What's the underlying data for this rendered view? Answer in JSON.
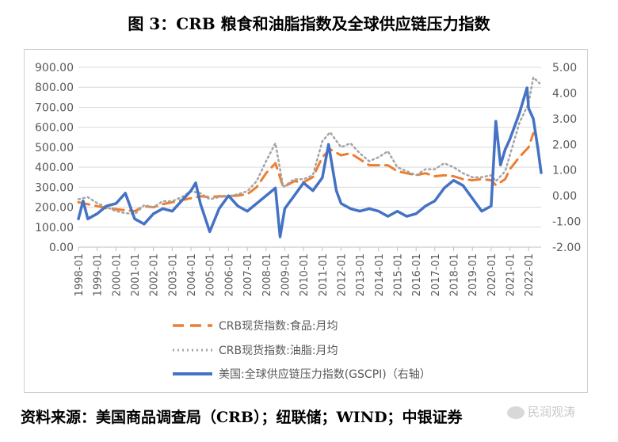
{
  "title": "图 3：CRB 粮食和油脂指数及全球供应链压力指数",
  "source": "资料来源：美国商品调查局（CRB）；纽联储；WIND；中银证券",
  "watermark": "民润观涛",
  "chart_data": {
    "type": "line",
    "x_ticks": [
      "1998-01",
      "1999-01",
      "2000-01",
      "2001-01",
      "2002-01",
      "2003-01",
      "2004-01",
      "2005-01",
      "2006-01",
      "2007-01",
      "2008-01",
      "2009-01",
      "2010-01",
      "2011-01",
      "2012-01",
      "2013-01",
      "2014-01",
      "2015-01",
      "2016-01",
      "2017-01",
      "2018-01",
      "2019-01",
      "2020-01",
      "2021-01",
      "2022-01"
    ],
    "y_left": {
      "min": 0,
      "max": 900,
      "ticks": [
        "0.00",
        "100.00",
        "200.00",
        "300.00",
        "400.00",
        "500.00",
        "600.00",
        "700.00",
        "800.00",
        "900.00"
      ]
    },
    "y_right": {
      "min": -2,
      "max": 5,
      "ticks": [
        "-2.00",
        "-1.00",
        "0.00",
        "1.00",
        "2.00",
        "3.00",
        "4.00",
        "5.00"
      ]
    },
    "grid": true,
    "legend_position": "bottom",
    "series": [
      {
        "name": "CRB现货指数:食品:月均",
        "axis": "left",
        "style": "dashed",
        "color": "#ED7D31",
        "points": [
          [
            "1998-01",
            225
          ],
          [
            "1998-07",
            215
          ],
          [
            "1999-01",
            205
          ],
          [
            "1999-07",
            195
          ],
          [
            "2000-01",
            190
          ],
          [
            "2000-07",
            185
          ],
          [
            "2001-01",
            180
          ],
          [
            "2001-07",
            205
          ],
          [
            "2002-01",
            200
          ],
          [
            "2002-07",
            215
          ],
          [
            "2003-01",
            225
          ],
          [
            "2003-07",
            235
          ],
          [
            "2004-01",
            245
          ],
          [
            "2004-07",
            255
          ],
          [
            "2005-01",
            250
          ],
          [
            "2005-07",
            255
          ],
          [
            "2006-01",
            255
          ],
          [
            "2006-07",
            258
          ],
          [
            "2007-01",
            265
          ],
          [
            "2007-07",
            300
          ],
          [
            "2008-01",
            370
          ],
          [
            "2008-07",
            420
          ],
          [
            "2008-12",
            300
          ],
          [
            "2009-07",
            330
          ],
          [
            "2010-01",
            325
          ],
          [
            "2010-07",
            350
          ],
          [
            "2011-01",
            450
          ],
          [
            "2011-06",
            490
          ],
          [
            "2012-01",
            460
          ],
          [
            "2012-07",
            470
          ],
          [
            "2013-01",
            440
          ],
          [
            "2013-07",
            410
          ],
          [
            "2014-01",
            410
          ],
          [
            "2014-07",
            410
          ],
          [
            "2015-01",
            380
          ],
          [
            "2015-07",
            370
          ],
          [
            "2016-01",
            360
          ],
          [
            "2016-07",
            370
          ],
          [
            "2017-01",
            355
          ],
          [
            "2017-07",
            360
          ],
          [
            "2018-01",
            355
          ],
          [
            "2018-07",
            340
          ],
          [
            "2019-01",
            335
          ],
          [
            "2019-07",
            340
          ],
          [
            "2020-01",
            335
          ],
          [
            "2020-04",
            310
          ],
          [
            "2020-10",
            340
          ],
          [
            "2021-01",
            390
          ],
          [
            "2021-07",
            450
          ],
          [
            "2022-01",
            500
          ],
          [
            "2022-04",
            570
          ],
          [
            "2022-08",
            550
          ]
        ]
      },
      {
        "name": "CRB现货指数:油脂:月均",
        "axis": "left",
        "style": "dotted",
        "color": "#A5A5A5",
        "points": [
          [
            "1998-01",
            240
          ],
          [
            "1998-07",
            250
          ],
          [
            "1999-01",
            220
          ],
          [
            "1999-07",
            200
          ],
          [
            "2000-01",
            180
          ],
          [
            "2000-07",
            170
          ],
          [
            "2001-01",
            165
          ],
          [
            "2001-07",
            210
          ],
          [
            "2002-01",
            200
          ],
          [
            "2002-07",
            230
          ],
          [
            "2003-01",
            230
          ],
          [
            "2003-07",
            250
          ],
          [
            "2004-01",
            280
          ],
          [
            "2004-07",
            270
          ],
          [
            "2005-01",
            240
          ],
          [
            "2005-07",
            250
          ],
          [
            "2006-01",
            255
          ],
          [
            "2006-07",
            265
          ],
          [
            "2007-01",
            280
          ],
          [
            "2007-07",
            330
          ],
          [
            "2008-01",
            430
          ],
          [
            "2008-07",
            520
          ],
          [
            "2008-12",
            300
          ],
          [
            "2009-07",
            340
          ],
          [
            "2010-01",
            340
          ],
          [
            "2010-07",
            360
          ],
          [
            "2011-01",
            530
          ],
          [
            "2011-06",
            575
          ],
          [
            "2012-01",
            500
          ],
          [
            "2012-07",
            520
          ],
          [
            "2013-01",
            470
          ],
          [
            "2013-07",
            430
          ],
          [
            "2014-01",
            450
          ],
          [
            "2014-07",
            480
          ],
          [
            "2015-01",
            400
          ],
          [
            "2015-07",
            380
          ],
          [
            "2016-01",
            360
          ],
          [
            "2016-07",
            390
          ],
          [
            "2017-01",
            390
          ],
          [
            "2017-07",
            420
          ],
          [
            "2018-01",
            400
          ],
          [
            "2018-07",
            370
          ],
          [
            "2019-01",
            350
          ],
          [
            "2019-07",
            350
          ],
          [
            "2020-01",
            360
          ],
          [
            "2020-04",
            330
          ],
          [
            "2020-10",
            380
          ],
          [
            "2021-01",
            460
          ],
          [
            "2021-07",
            620
          ],
          [
            "2022-01",
            720
          ],
          [
            "2022-04",
            850
          ],
          [
            "2022-08",
            820
          ]
        ]
      },
      {
        "name": "美国:全球供应链压力指数(GSCPI)（右轴）",
        "axis": "right",
        "style": "solid",
        "color": "#4472C4",
        "points": [
          [
            "1998-01",
            -0.9
          ],
          [
            "1998-04",
            -0.2
          ],
          [
            "1998-07",
            -0.9
          ],
          [
            "1999-01",
            -0.7
          ],
          [
            "1999-07",
            -0.4
          ],
          [
            "2000-01",
            -0.3
          ],
          [
            "2000-07",
            0.1
          ],
          [
            "2001-01",
            -0.9
          ],
          [
            "2001-07",
            -1.1
          ],
          [
            "2002-01",
            -0.7
          ],
          [
            "2002-07",
            -0.5
          ],
          [
            "2003-01",
            -0.6
          ],
          [
            "2003-07",
            -0.2
          ],
          [
            "2004-01",
            0.2
          ],
          [
            "2004-04",
            0.5
          ],
          [
            "2004-07",
            -0.3
          ],
          [
            "2005-01",
            -1.4
          ],
          [
            "2005-07",
            -0.5
          ],
          [
            "2006-01",
            0.0
          ],
          [
            "2006-07",
            -0.4
          ],
          [
            "2007-01",
            -0.6
          ],
          [
            "2007-07",
            -0.3
          ],
          [
            "2008-01",
            0.0
          ],
          [
            "2008-07",
            0.3
          ],
          [
            "2008-10",
            -1.6
          ],
          [
            "2009-01",
            -0.5
          ],
          [
            "2009-07",
            0.0
          ],
          [
            "2010-01",
            0.5
          ],
          [
            "2010-07",
            0.2
          ],
          [
            "2011-01",
            0.7
          ],
          [
            "2011-05",
            2.0
          ],
          [
            "2011-10",
            0.2
          ],
          [
            "2012-01",
            -0.3
          ],
          [
            "2012-07",
            -0.5
          ],
          [
            "2013-01",
            -0.6
          ],
          [
            "2013-07",
            -0.5
          ],
          [
            "2014-01",
            -0.6
          ],
          [
            "2014-07",
            -0.8
          ],
          [
            "2015-01",
            -0.6
          ],
          [
            "2015-07",
            -0.8
          ],
          [
            "2016-01",
            -0.7
          ],
          [
            "2016-07",
            -0.4
          ],
          [
            "2017-01",
            -0.2
          ],
          [
            "2017-07",
            0.3
          ],
          [
            "2018-01",
            0.6
          ],
          [
            "2018-07",
            0.4
          ],
          [
            "2019-01",
            -0.1
          ],
          [
            "2019-07",
            -0.6
          ],
          [
            "2020-01",
            -0.4
          ],
          [
            "2020-04",
            2.9
          ],
          [
            "2020-07",
            1.2
          ],
          [
            "2020-10",
            1.8
          ],
          [
            "2021-01",
            2.2
          ],
          [
            "2021-07",
            3.2
          ],
          [
            "2021-12",
            4.2
          ],
          [
            "2022-01",
            3.4
          ],
          [
            "2022-04",
            3.0
          ],
          [
            "2022-07",
            1.8
          ],
          [
            "2022-09",
            0.9
          ]
        ]
      }
    ]
  }
}
